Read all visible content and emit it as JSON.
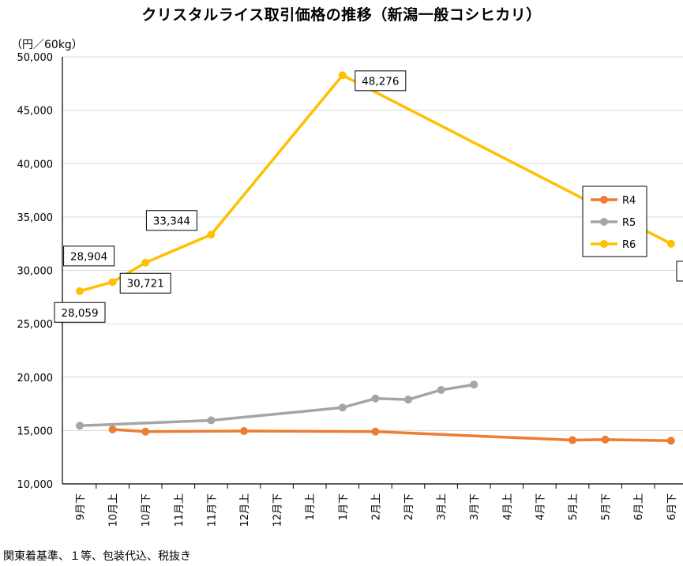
{
  "title": "クリスタルライス取引価格の推移（新潟一般コシヒカリ）",
  "unit": "（円／60kg）",
  "footnote": "関東着基準、１等、包装代込、税抜き",
  "chart_data": {
    "type": "line",
    "categories": [
      "9月下",
      "10月上",
      "10月下",
      "11月上",
      "11月下",
      "12月上",
      "12月下",
      "1月上",
      "1月下",
      "2月上",
      "2月下",
      "3月上",
      "3月下",
      "4月上",
      "4月下",
      "5月上",
      "5月下",
      "6月上",
      "6月下"
    ],
    "ylim": [
      10000,
      50000
    ],
    "yticks": [
      10000,
      15000,
      20000,
      25000,
      30000,
      35000,
      40000,
      45000,
      50000
    ],
    "ytick_labels": [
      "10,000",
      "15,000",
      "20,000",
      "25,000",
      "30,000",
      "35,000",
      "40,000",
      "45,000",
      "50,000"
    ],
    "grid": true,
    "legend_position": "right",
    "series": [
      {
        "name": "R4",
        "color": "#ED7D31",
        "values": [
          null,
          15100,
          14900,
          null,
          null,
          14950,
          null,
          null,
          null,
          14900,
          null,
          null,
          null,
          null,
          null,
          14100,
          14150,
          null,
          14050
        ]
      },
      {
        "name": "R5",
        "color": "#A5A5A5",
        "values": [
          15450,
          null,
          null,
          null,
          15950,
          null,
          null,
          null,
          17150,
          18000,
          17900,
          18800,
          19300,
          null,
          null,
          null,
          null,
          null,
          null
        ]
      },
      {
        "name": "R6",
        "color": "#FFC000",
        "values": [
          28059,
          28904,
          30721,
          null,
          33344,
          null,
          null,
          null,
          48276,
          null,
          null,
          null,
          null,
          null,
          null,
          null,
          null,
          null,
          32500
        ]
      }
    ],
    "data_labels": [
      {
        "series": "R6",
        "x": "9月下",
        "text": "28,059"
      },
      {
        "series": "R6",
        "x": "10月上",
        "text": "28,904"
      },
      {
        "series": "R6",
        "x": "10月下",
        "text": "30,721"
      },
      {
        "series": "R6",
        "x": "11月下",
        "text": "33,344"
      },
      {
        "series": "R6",
        "x": "1月下",
        "text": "48,276"
      }
    ]
  }
}
